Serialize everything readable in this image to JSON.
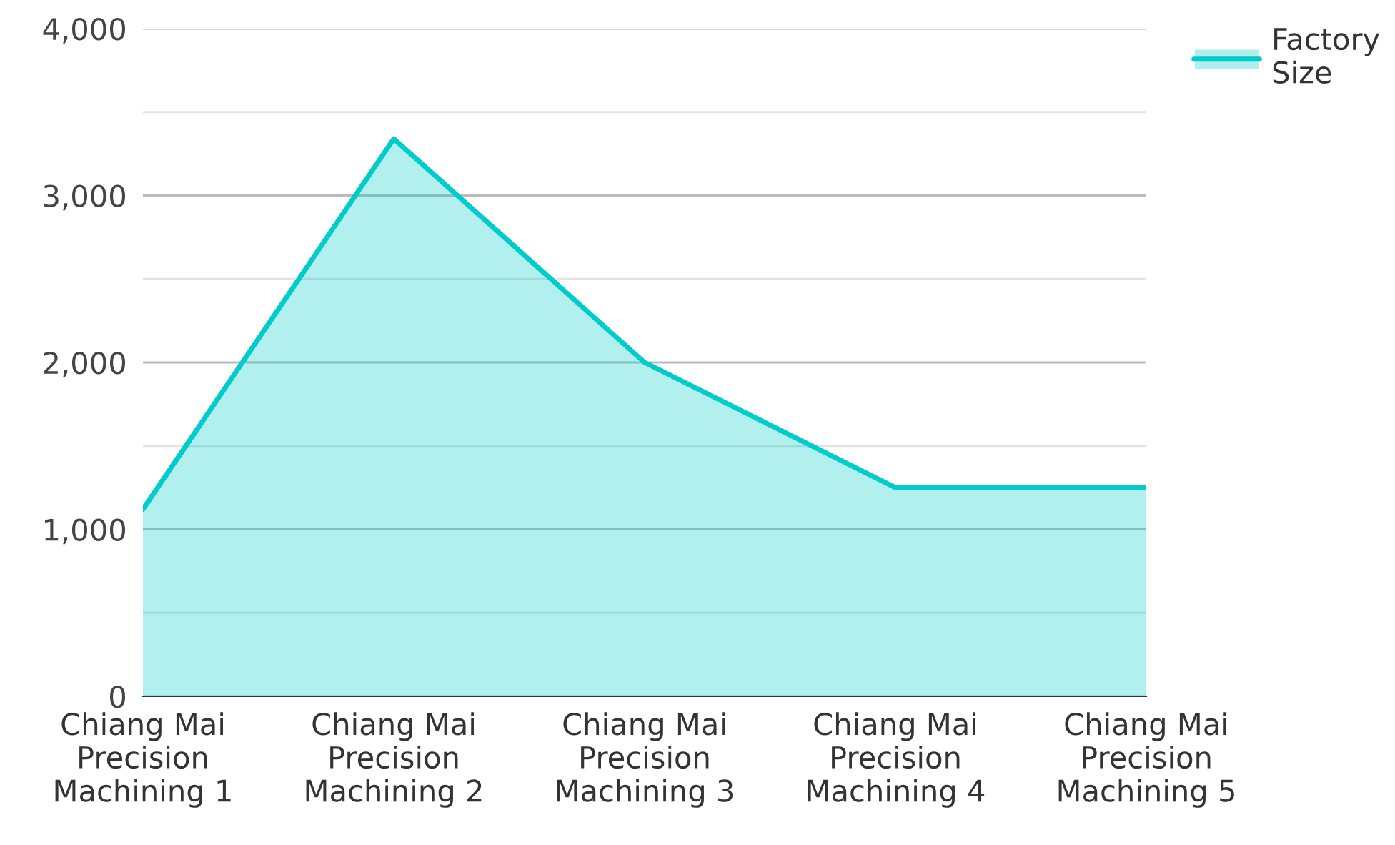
{
  "chart_data": {
    "type": "area",
    "categories": [
      "Chiang Mai\nPrecision\nMachining 1",
      "Chiang Mai\nPrecision\nMachining 2",
      "Chiang Mai\nPrecision\nMachining 3",
      "Chiang Mai\nPrecision\nMachining 4",
      "Chiang Mai\nPrecision\nMachining 5"
    ],
    "series": [
      {
        "name": "Factory\nSize",
        "color": "#00cccc",
        "values": [
          1120,
          3340,
          2000,
          1250,
          1250
        ]
      }
    ],
    "ylim": [
      0,
      4000
    ],
    "yticks": [
      0,
      {
        "value": 500,
        "label": null
      },
      {
        "value": 1000,
        "label": "1,000"
      },
      {
        "value": 1500,
        "label": null
      },
      {
        "value": 2000,
        "label": "2,000"
      },
      {
        "value": 2500,
        "label": null
      },
      {
        "value": 3000,
        "label": "3,000"
      },
      {
        "value": 3500,
        "label": null
      },
      {
        "value": 4000,
        "label": "4,000"
      }
    ],
    "grid": "y",
    "legend": "top right",
    "marker": "none",
    "line_style": "solid"
  }
}
